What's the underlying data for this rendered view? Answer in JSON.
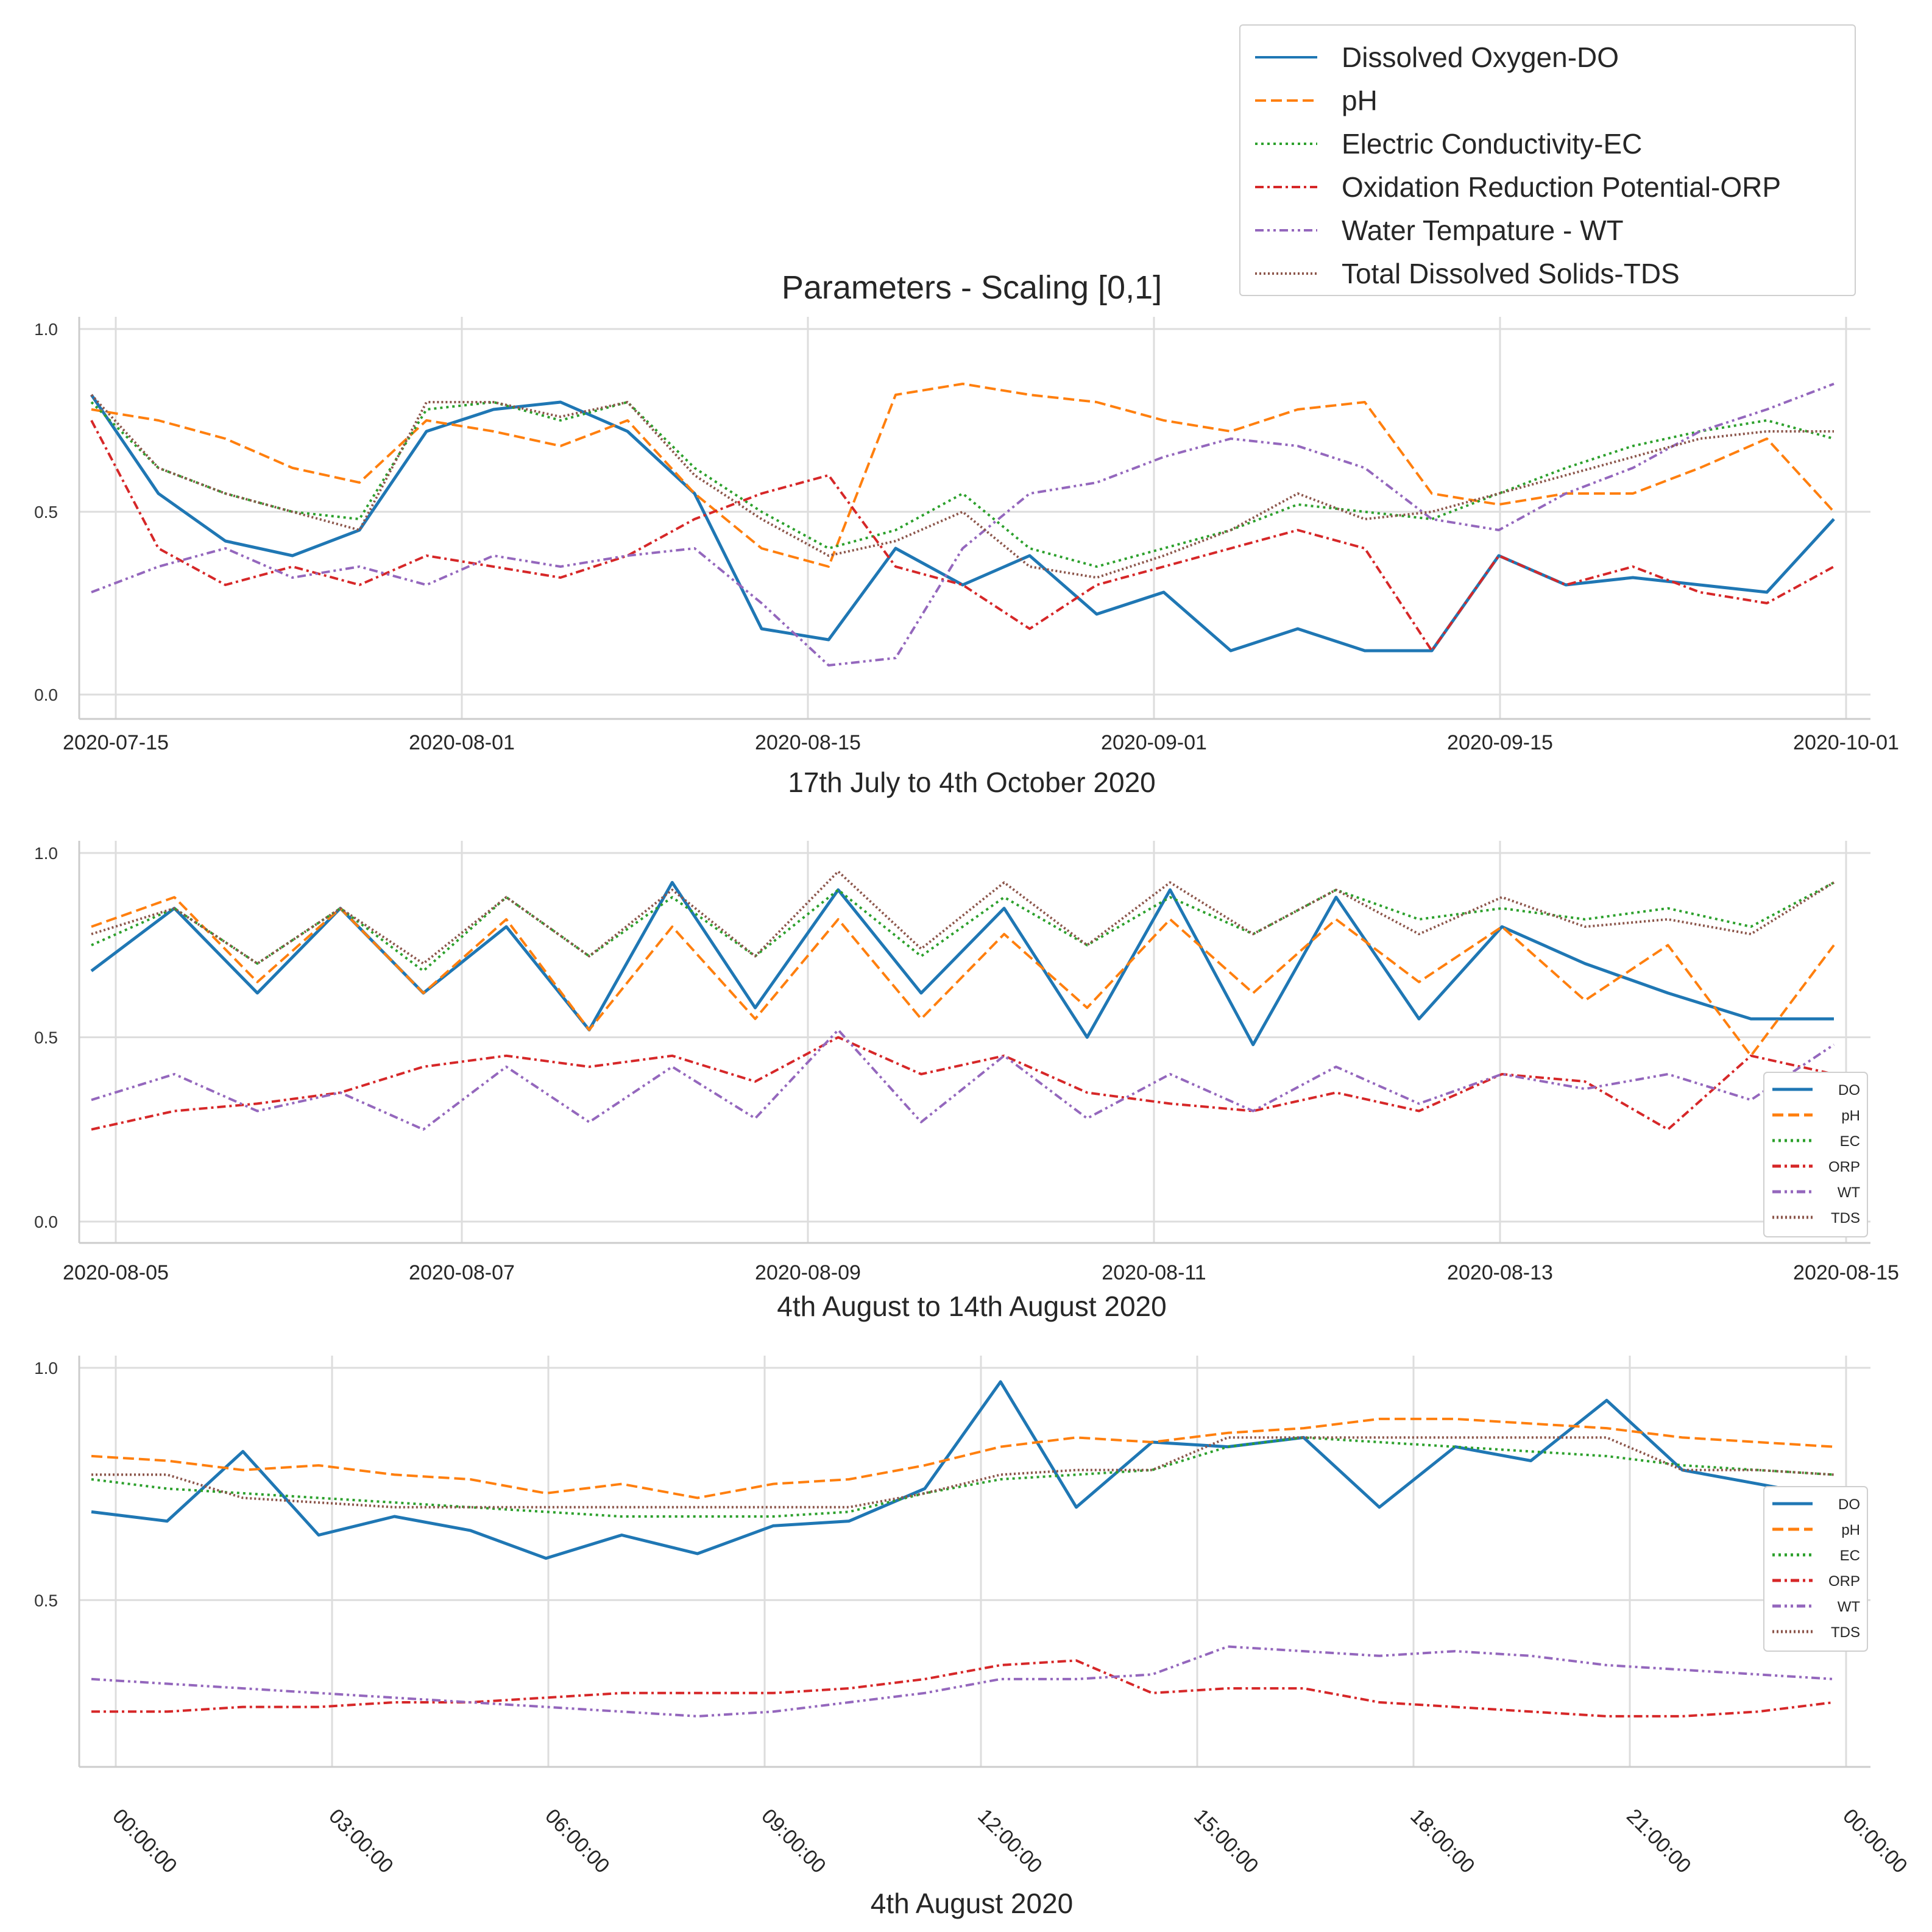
{
  "figure": {
    "title": "Parameters - Scaling [0,1]"
  },
  "legend_top": {
    "entries": [
      {
        "label": "Dissolved Oxygen-DO",
        "color": "#1f77b4",
        "dash": "solid"
      },
      {
        "label": "pH",
        "color": "#ff7f0e",
        "dash": "dashed"
      },
      {
        "label": "Electric Conductivity-EC",
        "color": "#2ca02c",
        "dash": "dotted"
      },
      {
        "label": "Oxidation Reduction Potential-ORP",
        "color": "#d62728",
        "dash": "dashdot"
      },
      {
        "label": "Water Tempature - WT",
        "color": "#9467bd",
        "dash": "dashdotdot"
      },
      {
        "label": "Total Dissolved Solids-TDS",
        "color": "#8c564b",
        "dash": "densedot"
      }
    ]
  },
  "legend_small": {
    "entries": [
      {
        "label": "DO",
        "color": "#1f77b4",
        "dash": "solid"
      },
      {
        "label": "pH",
        "color": "#ff7f0e",
        "dash": "dashed"
      },
      {
        "label": "EC",
        "color": "#2ca02c",
        "dash": "dotted"
      },
      {
        "label": "ORP",
        "color": "#d62728",
        "dash": "dashdot"
      },
      {
        "label": "WT",
        "color": "#9467bd",
        "dash": "dashdotdot"
      },
      {
        "label": "TDS",
        "color": "#8c564b",
        "dash": "densedot"
      }
    ]
  },
  "chart_data": [
    {
      "type": "line",
      "xlabel": "17th July to 4th October 2020",
      "ylabel": "",
      "ylim": [
        0,
        1
      ],
      "yticks": [
        "0.0",
        "0.5",
        "1.0"
      ],
      "xticks": [
        "2020-07-15",
        "2020-08-01",
        "2020-08-15",
        "2020-09-01",
        "2020-09-15",
        "2020-10-01"
      ],
      "grid": true,
      "x_dates": [
        "2020-07-17",
        "2020-07-20",
        "2020-07-23",
        "2020-07-26",
        "2020-07-29",
        "2020-08-01",
        "2020-08-04",
        "2020-08-07",
        "2020-08-10",
        "2020-08-13",
        "2020-08-16",
        "2020-08-19",
        "2020-08-22",
        "2020-08-25",
        "2020-08-28",
        "2020-08-31",
        "2020-09-03",
        "2020-09-06",
        "2020-09-09",
        "2020-09-12",
        "2020-09-15",
        "2020-09-18",
        "2020-09-21",
        "2020-09-24",
        "2020-09-27",
        "2020-09-30",
        "2020-10-04"
      ],
      "series": [
        {
          "name": "Dissolved Oxygen-DO",
          "values": [
            0.82,
            0.55,
            0.42,
            0.38,
            0.45,
            0.72,
            0.78,
            0.8,
            0.72,
            0.55,
            0.18,
            0.15,
            0.4,
            0.3,
            0.38,
            0.22,
            0.28,
            0.12,
            0.18,
            0.12,
            0.12,
            0.38,
            0.3,
            0.32,
            0.3,
            0.28,
            0.48
          ]
        },
        {
          "name": "pH",
          "values": [
            0.78,
            0.75,
            0.7,
            0.62,
            0.58,
            0.75,
            0.72,
            0.68,
            0.75,
            0.55,
            0.4,
            0.35,
            0.82,
            0.85,
            0.82,
            0.8,
            0.75,
            0.72,
            0.78,
            0.8,
            0.55,
            0.52,
            0.55,
            0.55,
            0.62,
            0.7,
            0.5
          ]
        },
        {
          "name": "Electric Conductivity-EC",
          "values": [
            0.8,
            0.62,
            0.55,
            0.5,
            0.48,
            0.78,
            0.8,
            0.75,
            0.8,
            0.62,
            0.5,
            0.4,
            0.45,
            0.55,
            0.4,
            0.35,
            0.4,
            0.45,
            0.52,
            0.5,
            0.48,
            0.55,
            0.62,
            0.68,
            0.72,
            0.75,
            0.7
          ]
        },
        {
          "name": "Oxidation Reduction Potential-ORP",
          "values": [
            0.75,
            0.4,
            0.3,
            0.35,
            0.3,
            0.38,
            0.35,
            0.32,
            0.38,
            0.48,
            0.55,
            0.6,
            0.35,
            0.3,
            0.18,
            0.3,
            0.35,
            0.4,
            0.45,
            0.4,
            0.12,
            0.38,
            0.3,
            0.35,
            0.28,
            0.25,
            0.35
          ]
        },
        {
          "name": "Water Tempature - WT",
          "values": [
            0.28,
            0.35,
            0.4,
            0.32,
            0.35,
            0.3,
            0.38,
            0.35,
            0.38,
            0.4,
            0.25,
            0.08,
            0.1,
            0.4,
            0.55,
            0.58,
            0.65,
            0.7,
            0.68,
            0.62,
            0.48,
            0.45,
            0.55,
            0.62,
            0.72,
            0.78,
            0.85
          ]
        },
        {
          "name": "Total Dissolved Solids-TDS",
          "values": [
            0.82,
            0.62,
            0.55,
            0.5,
            0.45,
            0.8,
            0.8,
            0.76,
            0.8,
            0.6,
            0.48,
            0.38,
            0.42,
            0.5,
            0.35,
            0.32,
            0.38,
            0.45,
            0.55,
            0.48,
            0.5,
            0.55,
            0.6,
            0.65,
            0.7,
            0.72,
            0.72
          ]
        }
      ]
    },
    {
      "type": "line",
      "xlabel": "4th August to 14th August 2020",
      "ylabel": "",
      "ylim": [
        0,
        1
      ],
      "yticks": [
        "0.0",
        "0.5",
        "1.0"
      ],
      "xticks": [
        "2020-08-05",
        "2020-08-07",
        "2020-08-09",
        "2020-08-11",
        "2020-08-13",
        "2020-08-15"
      ],
      "grid": true,
      "x_dates": [
        "2020-08-04 00:00",
        "2020-08-04 12:00",
        "2020-08-05 00:00",
        "2020-08-05 12:00",
        "2020-08-06 00:00",
        "2020-08-06 12:00",
        "2020-08-07 00:00",
        "2020-08-07 12:00",
        "2020-08-08 00:00",
        "2020-08-08 12:00",
        "2020-08-09 00:00",
        "2020-08-09 12:00",
        "2020-08-10 00:00",
        "2020-08-10 12:00",
        "2020-08-11 00:00",
        "2020-08-11 12:00",
        "2020-08-12 00:00",
        "2020-08-12 12:00",
        "2020-08-13 00:00",
        "2020-08-13 12:00",
        "2020-08-14 00:00",
        "2020-08-14 18:00"
      ],
      "series": [
        {
          "name": "DO",
          "values": [
            0.68,
            0.85,
            0.62,
            0.85,
            0.62,
            0.8,
            0.52,
            0.92,
            0.58,
            0.9,
            0.62,
            0.85,
            0.5,
            0.9,
            0.48,
            0.88,
            0.55,
            0.8,
            0.7,
            0.62,
            0.55,
            0.55
          ]
        },
        {
          "name": "pH",
          "values": [
            0.8,
            0.88,
            0.65,
            0.85,
            0.62,
            0.82,
            0.52,
            0.8,
            0.55,
            0.82,
            0.55,
            0.78,
            0.58,
            0.82,
            0.62,
            0.82,
            0.65,
            0.8,
            0.6,
            0.75,
            0.45,
            0.75
          ]
        },
        {
          "name": "EC",
          "values": [
            0.75,
            0.85,
            0.7,
            0.85,
            0.68,
            0.88,
            0.72,
            0.88,
            0.72,
            0.9,
            0.72,
            0.88,
            0.75,
            0.88,
            0.78,
            0.9,
            0.82,
            0.85,
            0.82,
            0.85,
            0.8,
            0.92
          ]
        },
        {
          "name": "ORP",
          "values": [
            0.25,
            0.3,
            0.32,
            0.35,
            0.42,
            0.45,
            0.42,
            0.45,
            0.38,
            0.5,
            0.4,
            0.45,
            0.35,
            0.32,
            0.3,
            0.35,
            0.3,
            0.4,
            0.38,
            0.25,
            0.45,
            0.4
          ]
        },
        {
          "name": "WT",
          "values": [
            0.33,
            0.4,
            0.3,
            0.35,
            0.25,
            0.42,
            0.27,
            0.42,
            0.28,
            0.52,
            0.27,
            0.45,
            0.28,
            0.4,
            0.3,
            0.42,
            0.32,
            0.4,
            0.36,
            0.4,
            0.33,
            0.48
          ]
        },
        {
          "name": "TDS",
          "values": [
            0.78,
            0.85,
            0.7,
            0.85,
            0.7,
            0.88,
            0.72,
            0.9,
            0.72,
            0.95,
            0.74,
            0.92,
            0.75,
            0.92,
            0.78,
            0.9,
            0.78,
            0.88,
            0.8,
            0.82,
            0.78,
            0.92
          ]
        }
      ]
    },
    {
      "type": "line",
      "xlabel": "4th August 2020",
      "ylabel": "",
      "ylim": [
        0.2,
        1.0
      ],
      "yticks": [
        "0.5",
        "1.0"
      ],
      "xticks": [
        "00:00:00",
        "03:00:00",
        "06:00:00",
        "09:00:00",
        "12:00:00",
        "15:00:00",
        "18:00:00",
        "21:00:00",
        "00:00:00"
      ],
      "grid": true,
      "x_hours": [
        0,
        1,
        2,
        3,
        4,
        5,
        6,
        7,
        8,
        9,
        10,
        11,
        12,
        13,
        14,
        15,
        16,
        17,
        18,
        19,
        20,
        21,
        22,
        23
      ],
      "series": [
        {
          "name": "DO",
          "values": [
            0.69,
            0.67,
            0.82,
            0.64,
            0.68,
            0.65,
            0.59,
            0.64,
            0.6,
            0.66,
            0.67,
            0.74,
            0.97,
            0.7,
            0.84,
            0.83,
            0.85,
            0.7,
            0.83,
            0.8,
            0.93,
            0.78,
            0.75,
            0.72
          ]
        },
        {
          "name": "pH",
          "values": [
            0.81,
            0.8,
            0.78,
            0.79,
            0.77,
            0.76,
            0.73,
            0.75,
            0.72,
            0.75,
            0.76,
            0.79,
            0.83,
            0.85,
            0.84,
            0.86,
            0.87,
            0.89,
            0.89,
            0.88,
            0.87,
            0.85,
            0.84,
            0.83
          ]
        },
        {
          "name": "EC",
          "values": [
            0.76,
            0.74,
            0.73,
            0.72,
            0.71,
            0.7,
            0.69,
            0.68,
            0.68,
            0.68,
            0.69,
            0.73,
            0.76,
            0.77,
            0.78,
            0.83,
            0.85,
            0.84,
            0.83,
            0.82,
            0.81,
            0.79,
            0.78,
            0.77
          ]
        },
        {
          "name": "ORP",
          "values": [
            0.26,
            0.26,
            0.27,
            0.27,
            0.28,
            0.28,
            0.29,
            0.3,
            0.3,
            0.3,
            0.31,
            0.33,
            0.36,
            0.37,
            0.3,
            0.31,
            0.31,
            0.28,
            0.27,
            0.26,
            0.25,
            0.25,
            0.26,
            0.28
          ]
        },
        {
          "name": "WT",
          "values": [
            0.33,
            0.32,
            0.31,
            0.3,
            0.29,
            0.28,
            0.27,
            0.26,
            0.25,
            0.26,
            0.28,
            0.3,
            0.33,
            0.33,
            0.34,
            0.4,
            0.39,
            0.38,
            0.39,
            0.38,
            0.36,
            0.35,
            0.34,
            0.33
          ]
        },
        {
          "name": "TDS",
          "values": [
            0.77,
            0.77,
            0.72,
            0.71,
            0.7,
            0.7,
            0.7,
            0.7,
            0.7,
            0.7,
            0.7,
            0.73,
            0.77,
            0.78,
            0.78,
            0.85,
            0.85,
            0.85,
            0.85,
            0.85,
            0.85,
            0.78,
            0.78,
            0.77
          ]
        }
      ]
    }
  ]
}
